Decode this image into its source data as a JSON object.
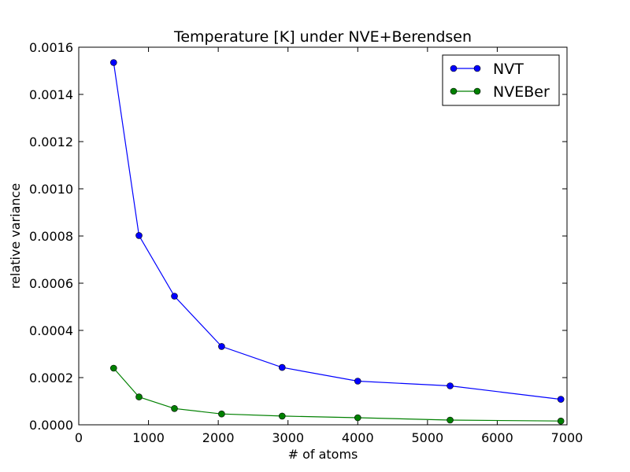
{
  "chart_data": {
    "type": "line",
    "title": "Temperature [K] under NVE+Berendsen",
    "xlabel": "# of atoms",
    "ylabel": "relative variance",
    "xlim": [
      0,
      7000
    ],
    "ylim": [
      0,
      0.0016
    ],
    "x_ticks": [
      "0",
      "1000",
      "2000",
      "3000",
      "4000",
      "5000",
      "6000",
      "7000"
    ],
    "y_ticks": [
      "0.0000",
      "0.0002",
      "0.0004",
      "0.0006",
      "0.0008",
      "0.0010",
      "0.0012",
      "0.0014",
      "0.0016"
    ],
    "grid": false,
    "legend_position": "top-right",
    "x": [
      500,
      864,
      1372,
      2048,
      2916,
      4000,
      5324,
      6912
    ],
    "series": [
      {
        "name": "NVT",
        "color": "#0000ff",
        "values": [
          0.001535,
          0.000802,
          0.000545,
          0.000332,
          0.000243,
          0.000185,
          0.000165,
          0.000108
        ]
      },
      {
        "name": "NVEBer",
        "color": "#008000",
        "values": [
          0.00024,
          0.000118,
          6.9e-05,
          4.6e-05,
          3.7e-05,
          3e-05,
          2e-05,
          1.6e-05
        ]
      }
    ]
  }
}
